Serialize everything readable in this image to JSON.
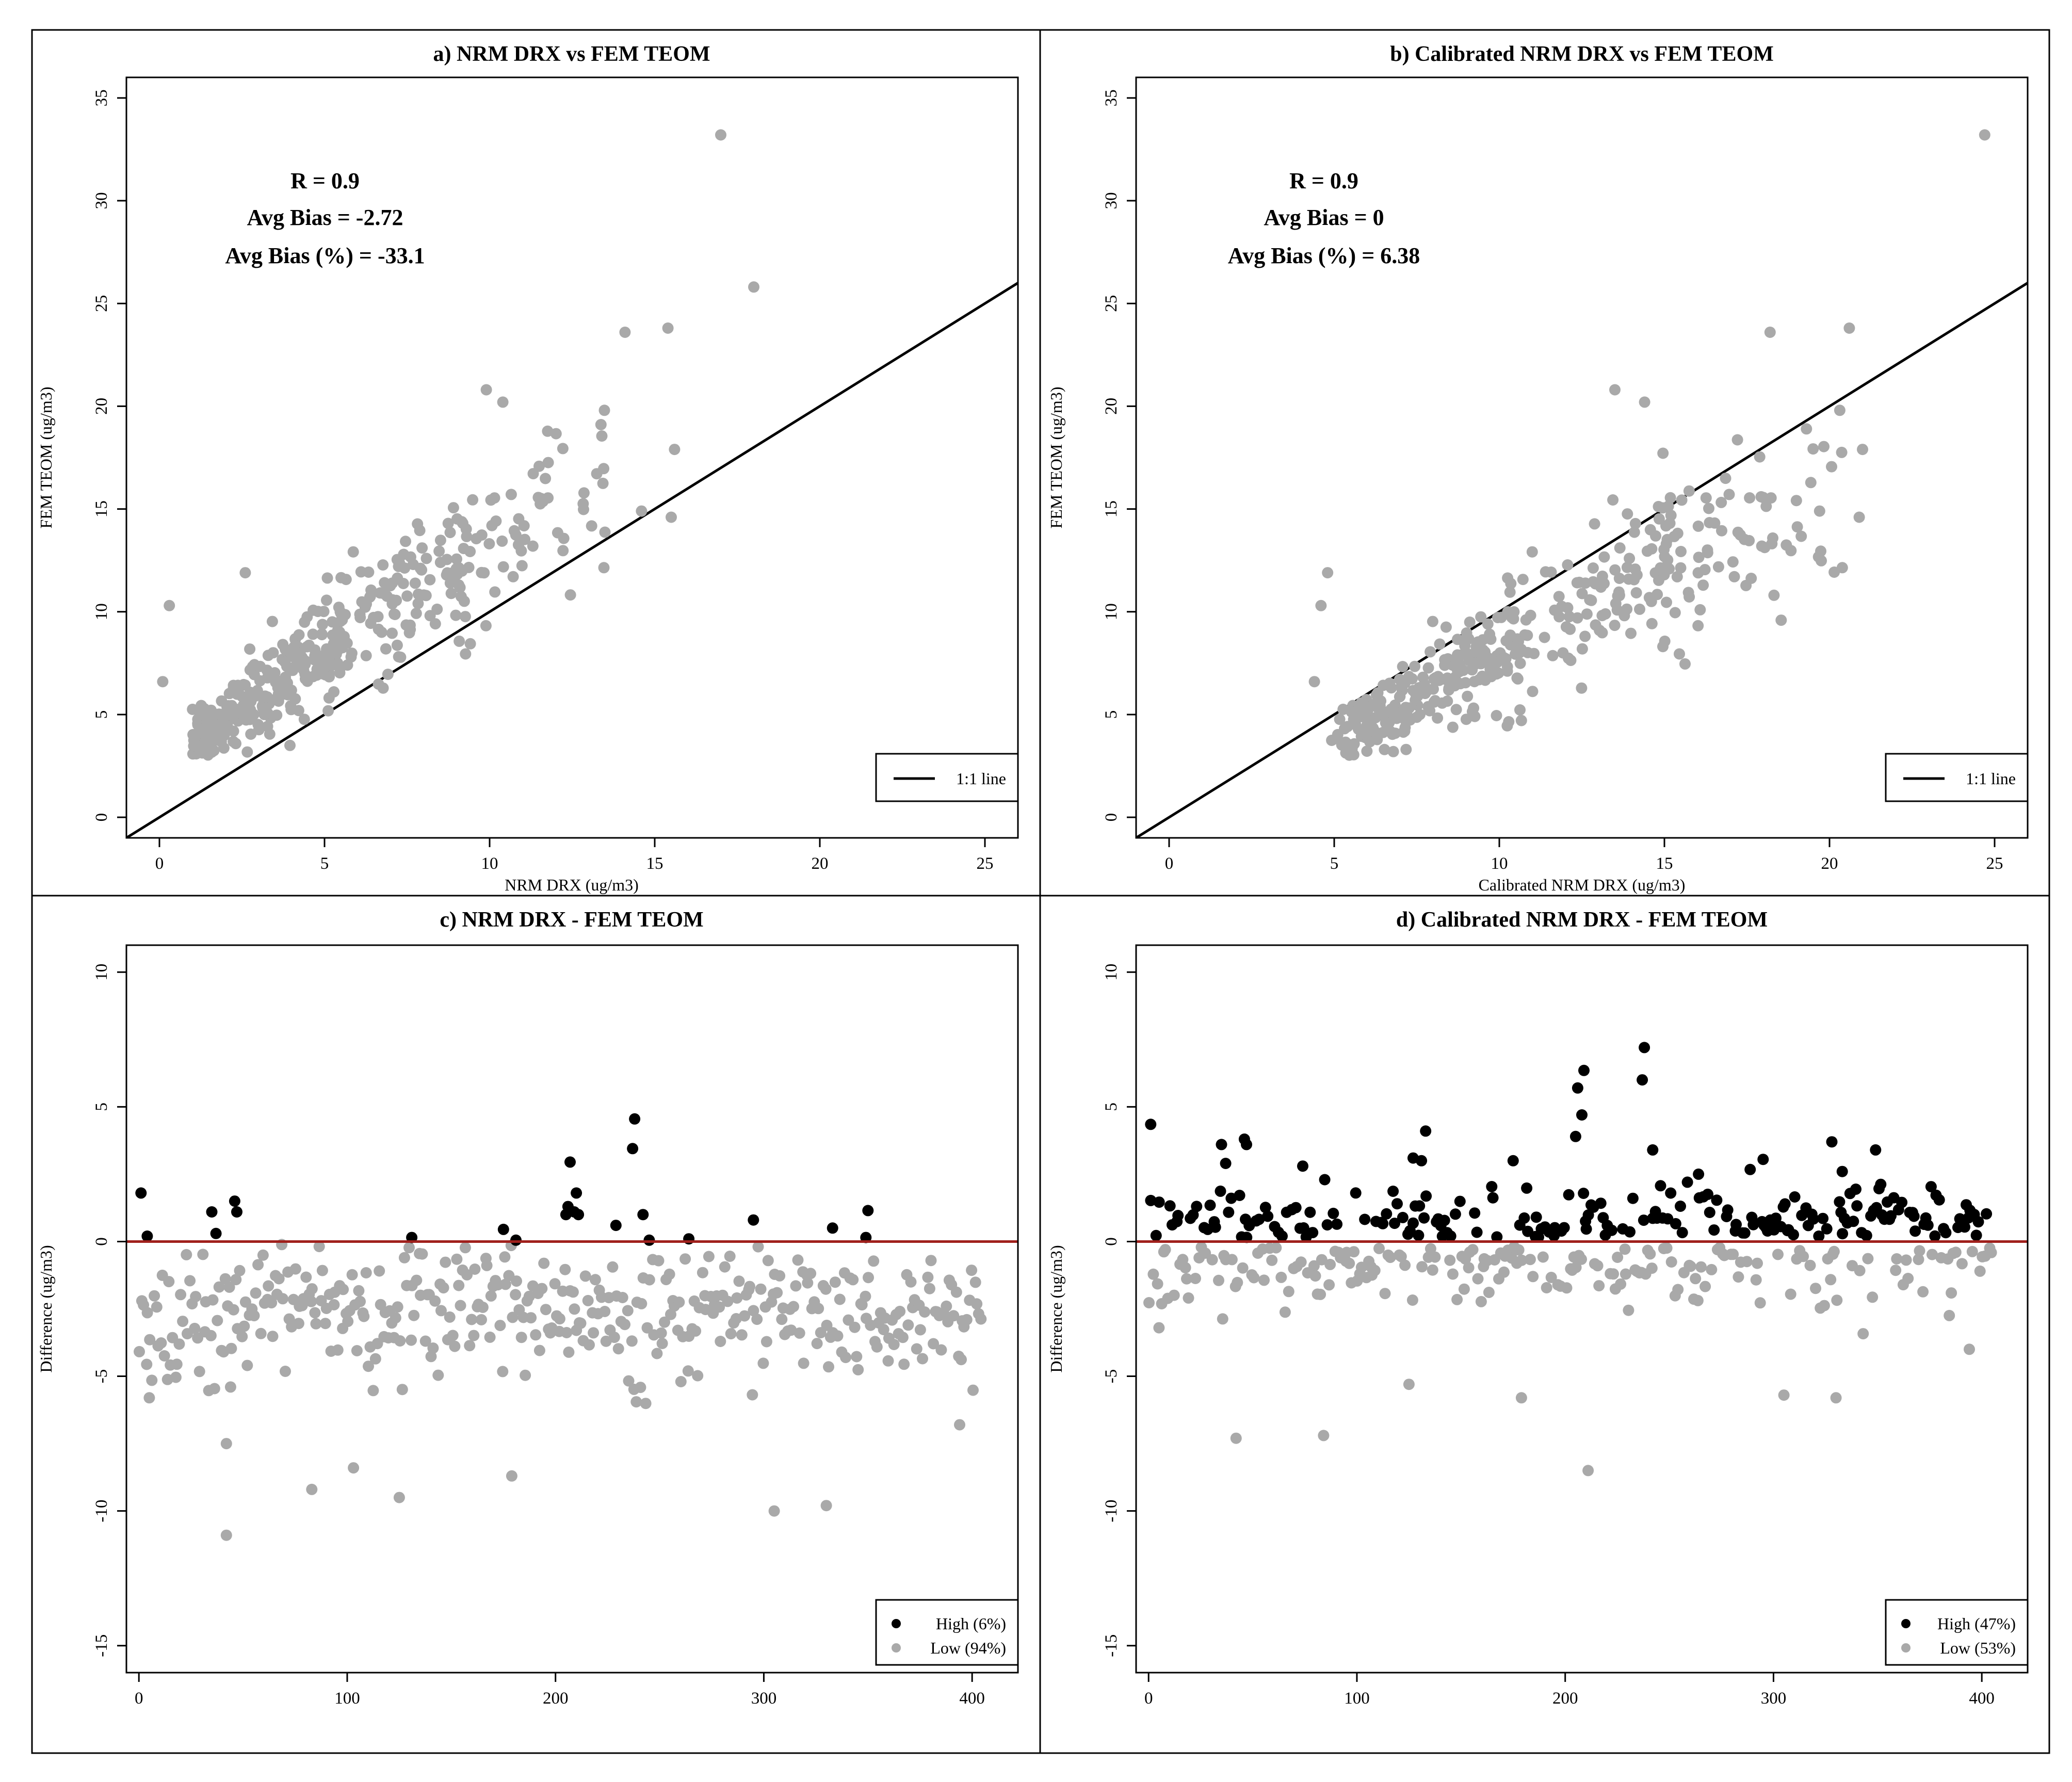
{
  "figure": {
    "background": "#ffffff",
    "point_gray": "#a9a9a9",
    "point_black": "#000000",
    "zero_line_color": "#a0201c"
  },
  "chart_data": [
    {
      "id": "a",
      "type": "scatter",
      "title": "a) NRM DRX vs FEM TEOM",
      "xlabel": "NRM DRX (ug/m3)",
      "ylabel": "FEM TEOM (ug/m3)",
      "xlim": [
        -1,
        26
      ],
      "ylim": [
        -1,
        36
      ],
      "xticks": [
        0,
        5,
        10,
        15,
        20,
        25
      ],
      "yticks": [
        0,
        5,
        10,
        15,
        20,
        25,
        30,
        35
      ],
      "stats": [
        "R = 0.9",
        "Avg Bias = -2.72",
        "Avg Bias (%) = -33.1"
      ],
      "reference_line": {
        "label": "1:1 line",
        "slope": 1,
        "intercept": 0
      },
      "series_gen": {
        "kind": "a",
        "n": 420,
        "seed": 11
      },
      "extra_points": [
        [
          17.0,
          33.2
        ],
        [
          18.0,
          25.8
        ],
        [
          15.4,
          23.8
        ],
        [
          14.1,
          23.6
        ],
        [
          9.9,
          20.8
        ],
        [
          10.4,
          20.2
        ],
        [
          15.6,
          17.9
        ],
        [
          14.6,
          14.9
        ],
        [
          15.5,
          14.6
        ],
        [
          2.6,
          11.9
        ],
        [
          0.3,
          10.3
        ],
        [
          0.1,
          6.6
        ]
      ]
    },
    {
      "id": "b",
      "type": "scatter",
      "title": "b) Calibrated NRM DRX vs FEM TEOM",
      "xlabel": "Calibrated NRM DRX (ug/m3)",
      "ylabel": "FEM TEOM (ug/m3)",
      "xlim": [
        -1,
        26
      ],
      "ylim": [
        -1,
        36
      ],
      "xticks": [
        0,
        5,
        10,
        15,
        20,
        25
      ],
      "yticks": [
        0,
        5,
        10,
        15,
        20,
        25,
        30,
        35
      ],
      "stats": [
        "R = 0.9",
        "Avg Bias = 0",
        "Avg Bias (%) = 6.38"
      ],
      "reference_line": {
        "label": "1:1 line",
        "slope": 1,
        "intercept": 0
      },
      "series_gen": {
        "kind": "b",
        "n": 420,
        "seed": 11
      },
      "extra_points": [
        [
          24.7,
          33.2
        ],
        [
          20.6,
          23.8
        ],
        [
          18.2,
          23.6
        ],
        [
          13.5,
          20.8
        ],
        [
          14.4,
          20.2
        ],
        [
          21.0,
          17.9
        ],
        [
          19.7,
          14.9
        ],
        [
          20.9,
          14.6
        ],
        [
          4.8,
          11.9
        ],
        [
          4.6,
          10.3
        ],
        [
          4.4,
          6.6
        ]
      ]
    },
    {
      "id": "c",
      "type": "scatter",
      "title": "c) NRM DRX - FEM TEOM",
      "xlabel": "",
      "ylabel": "Difference (ug/m3)",
      "xlim": [
        -6,
        422
      ],
      "ylim": [
        -16,
        11
      ],
      "xticks": [
        0,
        100,
        200,
        300,
        400
      ],
      "yticks": [
        -15,
        -10,
        -5,
        0,
        5,
        10
      ],
      "reference_line": {
        "y": 0
      },
      "legend": [
        {
          "label": "High (6%)",
          "color": "#000000"
        },
        {
          "label": "Low (94%)",
          "color": "#a9a9a9"
        }
      ],
      "series_gen": {
        "kind": "c",
        "n": 405,
        "seed": 23
      },
      "high_points": [
        [
          1,
          1.8
        ],
        [
          4,
          0.2
        ],
        [
          35,
          1.1
        ],
        [
          37,
          0.3
        ],
        [
          46,
          1.5
        ],
        [
          47,
          1.1
        ],
        [
          131,
          0.15
        ],
        [
          175,
          0.45
        ],
        [
          181,
          0.05
        ],
        [
          205,
          1.0
        ],
        [
          206,
          1.3
        ],
        [
          207,
          2.95
        ],
        [
          209,
          1.1
        ],
        [
          210,
          1.8
        ],
        [
          211,
          1.0
        ],
        [
          229,
          0.6
        ],
        [
          237,
          3.45
        ],
        [
          238,
          4.55
        ],
        [
          242,
          1.0
        ],
        [
          245,
          0.05
        ],
        [
          264,
          0.1
        ],
        [
          295,
          0.8
        ],
        [
          333,
          0.5
        ],
        [
          349,
          0.15
        ],
        [
          350,
          1.15
        ]
      ],
      "extra_low": [
        [
          42,
          -10.9
        ],
        [
          42,
          -7.5
        ],
        [
          44,
          -5.4
        ],
        [
          83,
          -9.2
        ],
        [
          103,
          -8.4
        ],
        [
          125,
          -9.5
        ],
        [
          179,
          -8.7
        ],
        [
          305,
          -10.0
        ],
        [
          330,
          -9.8
        ],
        [
          5,
          -5.8
        ],
        [
          394,
          -6.8
        ]
      ]
    },
    {
      "id": "d",
      "type": "scatter",
      "title": "d) Calibrated NRM DRX - FEM TEOM",
      "xlabel": "",
      "ylabel": "Difference (ug/m3)",
      "xlim": [
        -6,
        422
      ],
      "ylim": [
        -16,
        11
      ],
      "xticks": [
        0,
        100,
        200,
        300,
        400
      ],
      "yticks": [
        -15,
        -10,
        -5,
        0,
        5,
        10
      ],
      "reference_line": {
        "y": 0
      },
      "legend": [
        {
          "label": "High (47%)",
          "color": "#000000"
        },
        {
          "label": "Low (53%)",
          "color": "#a9a9a9"
        }
      ],
      "series_gen": {
        "kind": "d",
        "n": 405,
        "seed": 37
      },
      "extra_high": [
        [
          1,
          4.35
        ],
        [
          35,
          3.6
        ],
        [
          37,
          2.9
        ],
        [
          46,
          3.8
        ],
        [
          47,
          3.6
        ],
        [
          74,
          2.8
        ],
        [
          127,
          3.1
        ],
        [
          131,
          3.0
        ],
        [
          133,
          4.1
        ],
        [
          175,
          3.0
        ],
        [
          205,
          3.9
        ],
        [
          206,
          5.7
        ],
        [
          208,
          4.7
        ],
        [
          209,
          6.35
        ],
        [
          237,
          6.0
        ],
        [
          238,
          7.2
        ],
        [
          242,
          3.4
        ],
        [
          264,
          2.5
        ],
        [
          295,
          3.05
        ],
        [
          328,
          3.7
        ],
        [
          333,
          2.6
        ],
        [
          349,
          3.4
        ]
      ],
      "extra_low": [
        [
          42,
          -7.3
        ],
        [
          84,
          -7.2
        ],
        [
          211,
          -8.5
        ],
        [
          125,
          -5.3
        ],
        [
          179,
          -5.8
        ],
        [
          305,
          -5.7
        ],
        [
          330,
          -5.8
        ],
        [
          5,
          -3.2
        ],
        [
          394,
          -4.0
        ]
      ]
    }
  ]
}
